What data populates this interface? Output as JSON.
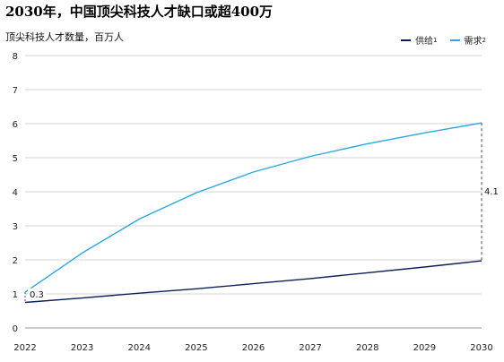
{
  "title": "2030年，中国顶尖科技人才缺口或超400万",
  "chart_data": {
    "type": "line",
    "title": "2030年，中国顶尖科技人才缺口或超400万",
    "ylabel": "顶尖科技人才数量，百万人",
    "xlabel": "",
    "x": [
      "2022",
      "2023",
      "2024",
      "2025",
      "2026",
      "2027",
      "2028",
      "2029",
      "2030"
    ],
    "ylim": [
      0,
      8
    ],
    "yticks": [
      "0",
      "1",
      "2",
      "3",
      "4",
      "5",
      "6",
      "7",
      "8"
    ],
    "grid": true,
    "legend_position": "top-right",
    "series": [
      {
        "name": "供给",
        "note": "1",
        "color": "#0b1f5c",
        "values": [
          0.75,
          0.88,
          1.02,
          1.15,
          1.3,
          1.45,
          1.62,
          1.79,
          1.97
        ]
      },
      {
        "name": "需求",
        "note": "2",
        "color": "#2aa7e0",
        "values": [
          1.05,
          2.2,
          3.2,
          3.97,
          4.58,
          5.04,
          5.41,
          5.73,
          6.02
        ]
      }
    ],
    "annotations": [
      {
        "text": "0.3",
        "x": "2022"
      },
      {
        "text": "4.1",
        "x": "2030"
      }
    ]
  }
}
